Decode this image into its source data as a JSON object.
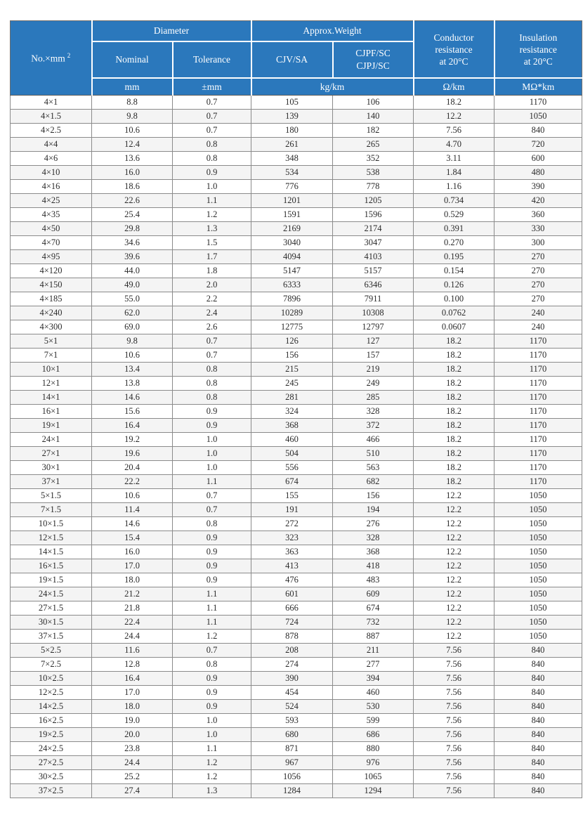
{
  "colors": {
    "header_bg": "#2b78bc",
    "header_text": "#ffffff",
    "row_stripe": "#f4f4f4",
    "grid_border": "#8b8b8b",
    "body_text": "#2b2b2b"
  },
  "header": {
    "no_label": "No.×mm",
    "no_sup": "2",
    "group_diameter": "Diameter",
    "group_weight": "Approx.Weight",
    "col_nominal": "Nominal",
    "col_tolerance": "Tolerance",
    "col_cjv": "CJV/SA",
    "col_cjpf_line1": "CJPF/SC",
    "col_cjpf_line2": "CJPJ/SC",
    "conductor_lines": [
      "Conductor",
      "resistance",
      "at 20°C"
    ],
    "insulation_lines": [
      "Insulation",
      "resistance",
      "at 20°C"
    ],
    "unit_mm": "mm",
    "unit_pmm": "±mm",
    "unit_kgkm": "kg/km",
    "unit_ohm": "Ω/km",
    "unit_mohm": "MΩ*km"
  },
  "table": {
    "columns": [
      "No.×mm2",
      "Diameter Nominal (mm)",
      "Diameter Tolerance (±mm)",
      "Approx.Weight CJV/SA (kg/km)",
      "Approx.Weight CJPF/SC CJPJ/SC (kg/km)",
      "Conductor resistance at 20°C (Ω/km)",
      "Insulation resistance at 20°C (MΩ*km)"
    ],
    "rows": [
      [
        "4×1",
        "8.8",
        "0.7",
        "105",
        "106",
        "18.2",
        "1170"
      ],
      [
        "4×1.5",
        "9.8",
        "0.7",
        "139",
        "140",
        "12.2",
        "1050"
      ],
      [
        "4×2.5",
        "10.6",
        "0.7",
        "180",
        "182",
        "7.56",
        "840"
      ],
      [
        "4×4",
        "12.4",
        "0.8",
        "261",
        "265",
        "4.70",
        "720"
      ],
      [
        "4×6",
        "13.6",
        "0.8",
        "348",
        "352",
        "3.11",
        "600"
      ],
      [
        "4×10",
        "16.0",
        "0.9",
        "534",
        "538",
        "1.84",
        "480"
      ],
      [
        "4×16",
        "18.6",
        "1.0",
        "776",
        "778",
        "1.16",
        "390"
      ],
      [
        "4×25",
        "22.6",
        "1.1",
        "1201",
        "1205",
        "0.734",
        "420"
      ],
      [
        "4×35",
        "25.4",
        "1.2",
        "1591",
        "1596",
        "0.529",
        "360"
      ],
      [
        "4×50",
        "29.8",
        "1.3",
        "2169",
        "2174",
        "0.391",
        "330"
      ],
      [
        "4×70",
        "34.6",
        "1.5",
        "3040",
        "3047",
        "0.270",
        "300"
      ],
      [
        "4×95",
        "39.6",
        "1.7",
        "4094",
        "4103",
        "0.195",
        "270"
      ],
      [
        "4×120",
        "44.0",
        "1.8",
        "5147",
        "5157",
        "0.154",
        "270"
      ],
      [
        "4×150",
        "49.0",
        "2.0",
        "6333",
        "6346",
        "0.126",
        "270"
      ],
      [
        "4×185",
        "55.0",
        "2.2",
        "7896",
        "7911",
        "0.100",
        "270"
      ],
      [
        "4×240",
        "62.0",
        "2.4",
        "10289",
        "10308",
        "0.0762",
        "240"
      ],
      [
        "4×300",
        "69.0",
        "2.6",
        "12775",
        "12797",
        "0.0607",
        "240"
      ],
      [
        "5×1",
        "9.8",
        "0.7",
        "126",
        "127",
        "18.2",
        "1170"
      ],
      [
        "7×1",
        "10.6",
        "0.7",
        "156",
        "157",
        "18.2",
        "1170"
      ],
      [
        "10×1",
        "13.4",
        "0.8",
        "215",
        "219",
        "18.2",
        "1170"
      ],
      [
        "12×1",
        "13.8",
        "0.8",
        "245",
        "249",
        "18.2",
        "1170"
      ],
      [
        "14×1",
        "14.6",
        "0.8",
        "281",
        "285",
        "18.2",
        "1170"
      ],
      [
        "16×1",
        "15.6",
        "0.9",
        "324",
        "328",
        "18.2",
        "1170"
      ],
      [
        "19×1",
        "16.4",
        "0.9",
        "368",
        "372",
        "18.2",
        "1170"
      ],
      [
        "24×1",
        "19.2",
        "1.0",
        "460",
        "466",
        "18.2",
        "1170"
      ],
      [
        "27×1",
        "19.6",
        "1.0",
        "504",
        "510",
        "18.2",
        "1170"
      ],
      [
        "30×1",
        "20.4",
        "1.0",
        "556",
        "563",
        "18.2",
        "1170"
      ],
      [
        "37×1",
        "22.2",
        "1.1",
        "674",
        "682",
        "18.2",
        "1170"
      ],
      [
        "5×1.5",
        "10.6",
        "0.7",
        "155",
        "156",
        "12.2",
        "1050"
      ],
      [
        "7×1.5",
        "11.4",
        "0.7",
        "191",
        "194",
        "12.2",
        "1050"
      ],
      [
        "10×1.5",
        "14.6",
        "0.8",
        "272",
        "276",
        "12.2",
        "1050"
      ],
      [
        "12×1.5",
        "15.4",
        "0.9",
        "323",
        "328",
        "12.2",
        "1050"
      ],
      [
        "14×1.5",
        "16.0",
        "0.9",
        "363",
        "368",
        "12.2",
        "1050"
      ],
      [
        "16×1.5",
        "17.0",
        "0.9",
        "413",
        "418",
        "12.2",
        "1050"
      ],
      [
        "19×1.5",
        "18.0",
        "0.9",
        "476",
        "483",
        "12.2",
        "1050"
      ],
      [
        "24×1.5",
        "21.2",
        "1.1",
        "601",
        "609",
        "12.2",
        "1050"
      ],
      [
        "27×1.5",
        "21.8",
        "1.1",
        "666",
        "674",
        "12.2",
        "1050"
      ],
      [
        "30×1.5",
        "22.4",
        "1.1",
        "724",
        "732",
        "12.2",
        "1050"
      ],
      [
        "37×1.5",
        "24.4",
        "1.2",
        "878",
        "887",
        "12.2",
        "1050"
      ],
      [
        "5×2.5",
        "11.6",
        "0.7",
        "208",
        "211",
        "7.56",
        "840"
      ],
      [
        "7×2.5",
        "12.8",
        "0.8",
        "274",
        "277",
        "7.56",
        "840"
      ],
      [
        "10×2.5",
        "16.4",
        "0.9",
        "390",
        "394",
        "7.56",
        "840"
      ],
      [
        "12×2.5",
        "17.0",
        "0.9",
        "454",
        "460",
        "7.56",
        "840"
      ],
      [
        "14×2.5",
        "18.0",
        "0.9",
        "524",
        "530",
        "7.56",
        "840"
      ],
      [
        "16×2.5",
        "19.0",
        "1.0",
        "593",
        "599",
        "7.56",
        "840"
      ],
      [
        "19×2.5",
        "20.0",
        "1.0",
        "680",
        "686",
        "7.56",
        "840"
      ],
      [
        "24×2.5",
        "23.8",
        "1.1",
        "871",
        "880",
        "7.56",
        "840"
      ],
      [
        "27×2.5",
        "24.4",
        "1.2",
        "967",
        "976",
        "7.56",
        "840"
      ],
      [
        "30×2.5",
        "25.2",
        "1.2",
        "1056",
        "1065",
        "7.56",
        "840"
      ],
      [
        "37×2.5",
        "27.4",
        "1.3",
        "1284",
        "1294",
        "7.56",
        "840"
      ]
    ]
  }
}
